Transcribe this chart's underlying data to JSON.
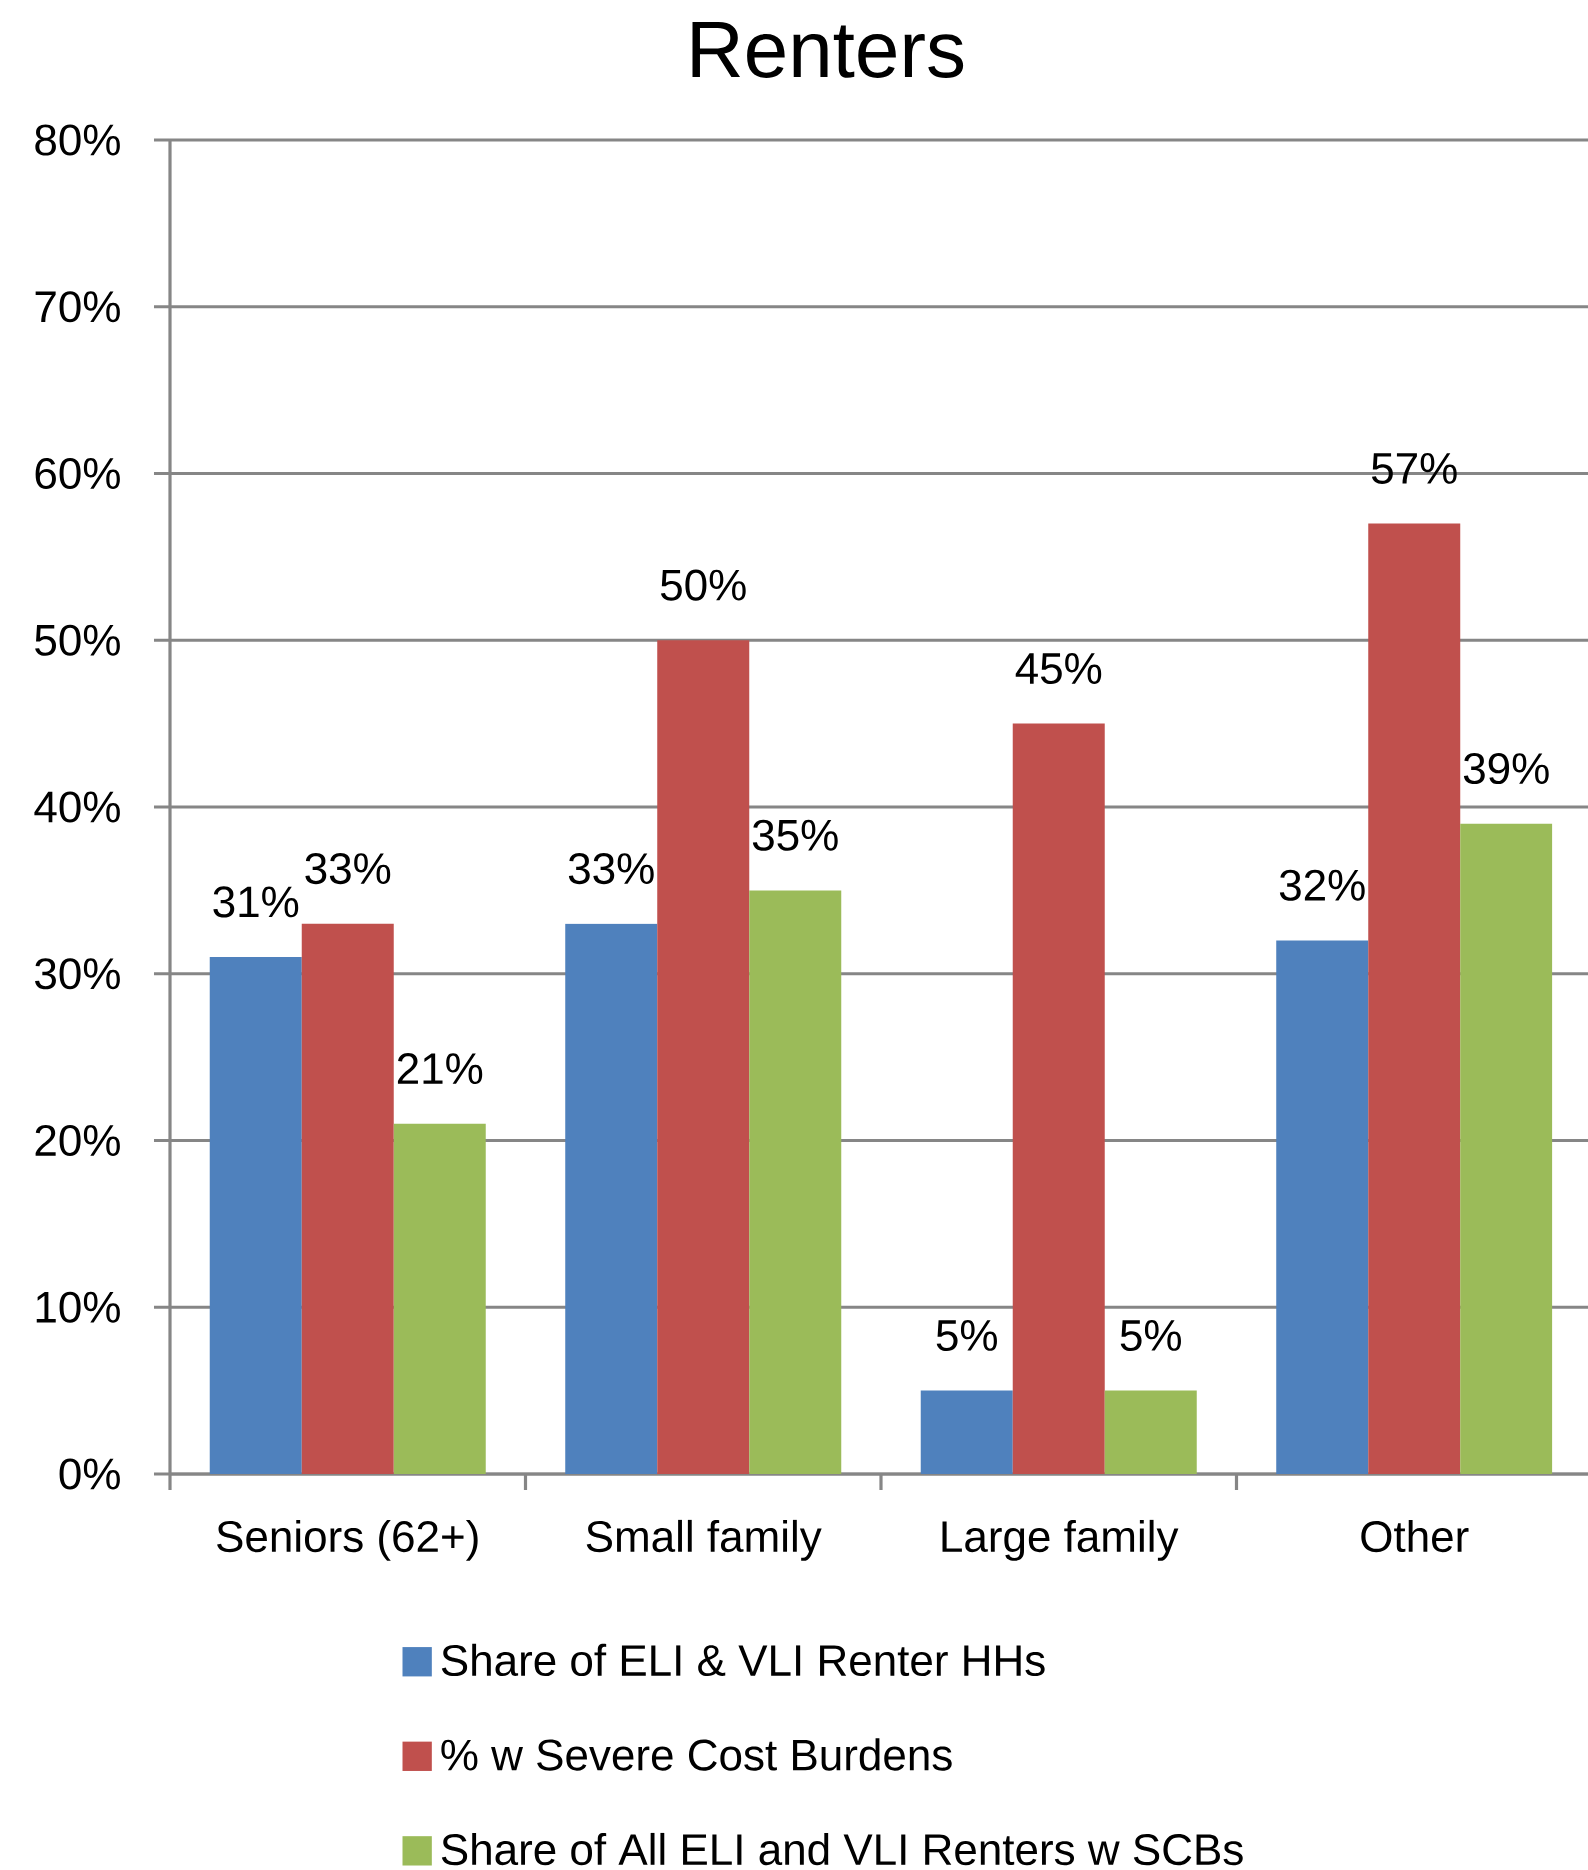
{
  "chart_data": {
    "type": "bar",
    "title": "Renters",
    "categories": [
      "Seniors (62+)",
      "Small family",
      "Large family",
      "Other"
    ],
    "series": [
      {
        "name": "Share of ELI & VLI Renter HHs",
        "color": "#4f81bd",
        "values": [
          31,
          33,
          5,
          32
        ],
        "value_labels": [
          "31%",
          "33%",
          "5%",
          "32%"
        ]
      },
      {
        "name": "% w Severe Cost Burdens",
        "color": "#c0504d",
        "values": [
          33,
          50,
          45,
          57
        ],
        "value_labels": [
          "33%",
          "50%",
          "45%",
          "57%"
        ]
      },
      {
        "name": "Share of All ELI and VLI Renters w SCBs",
        "color": "#9bbb59",
        "values": [
          21,
          35,
          5,
          39
        ],
        "value_labels": [
          "21%",
          "35%",
          "5%",
          "39%"
        ]
      }
    ],
    "ylim": [
      0,
      80
    ],
    "yticks": [
      {
        "value": 0,
        "label": "0%"
      },
      {
        "value": 10,
        "label": "10%"
      },
      {
        "value": 20,
        "label": "20%"
      },
      {
        "value": 30,
        "label": "30%"
      },
      {
        "value": 40,
        "label": "40%"
      },
      {
        "value": 50,
        "label": "50%"
      },
      {
        "value": 60,
        "label": "60%"
      },
      {
        "value": 70,
        "label": "70%"
      },
      {
        "value": 80,
        "label": "80%"
      }
    ],
    "grid": "y",
    "legend": "bottom"
  }
}
